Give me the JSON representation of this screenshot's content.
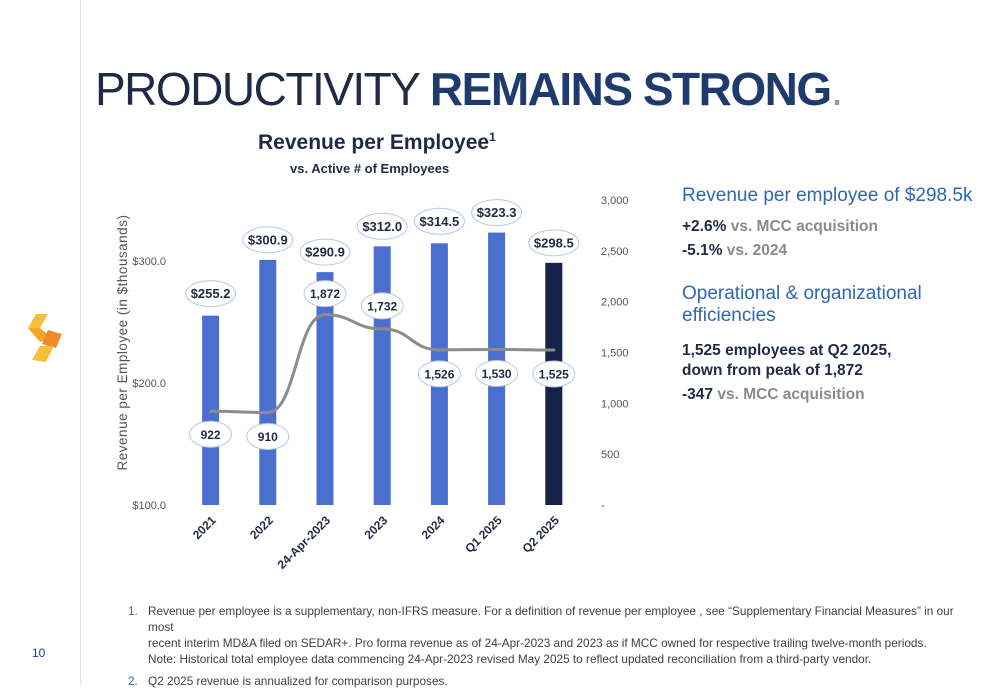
{
  "title": {
    "light": "PRODUCTIVITY ",
    "bold": "REMAINS STRONG",
    "dot": "."
  },
  "page_number": "10",
  "chart_data": {
    "type": "bar",
    "title": "Revenue per Employee",
    "title_sup": "1",
    "subtitle": "vs. Active # of Employees",
    "ylabel": "Revenue per Employee (in $thousands)",
    "categories": [
      "2021",
      "2022",
      "24-Apr-2023",
      "2023",
      "2024",
      "Q1 2025",
      "Q2 2025"
    ],
    "series": [
      {
        "values": [
          255.2,
          300.9,
          290.9,
          312.0,
          314.5,
          323.3,
          298.5
        ],
        "labels": [
          "$255.2",
          "$300.9",
          "$290.9",
          "$312.0",
          "$314.5",
          "$323.3",
          "$298.5"
        ],
        "axis": "left",
        "color": "#4a6fce",
        "highlight_color": "#14234a"
      },
      {
        "values": [
          922,
          910,
          1872,
          1732,
          1526,
          1530,
          1525
        ],
        "labels": [
          "922",
          "910",
          "1,872",
          "1,732",
          "1,526",
          "1,530",
          "1,525"
        ],
        "axis": "right",
        "type": "line",
        "color": "#8c8c8c"
      }
    ],
    "ylim": [
      100,
      350
    ],
    "yticks": [
      100,
      200,
      300
    ],
    "ytick_labels": [
      "$100.0",
      "$200.0",
      "$300.0"
    ],
    "y2lim": [
      0,
      3000
    ],
    "y2ticks": [
      0,
      500,
      1000,
      1500,
      2000,
      2500,
      3000
    ],
    "y2tick_labels": [
      "-",
      "500",
      "1,000",
      "1,500",
      "2,000",
      "2,500",
      "3,000"
    ],
    "grid": false,
    "legend": "none"
  },
  "stats": {
    "heading1": "Revenue per employee of $298.5k",
    "line1_num": "+2.6%",
    "line1_text": " vs. MCC acquisition",
    "line2_num": "-5.1%",
    "line2_text": " vs. 2024",
    "heading2": "Operational & organizational efficiencies",
    "line3a": "1,525 employees at Q2 2025,",
    "line3b": "down from peak of 1,872",
    "line4_num": "-347",
    "line4_text": " vs. MCC acquisition"
  },
  "footnotes": [
    {
      "num": "1.",
      "lines": [
        "Revenue per employee is a supplementary, non-IFRS measure. For a definition of revenue per employee , see “Supplementary Financial Measures” in our most",
        "recent interim MD&A filed on SEDAR+. Pro forma revenue as of 24-Apr-2023 and 2023 as if MCC owned for respective trailing twelve-month periods.",
        "Note: Historical total employee data commencing 24-Apr-2023 revised May 2025 to reflect updated reconciliation from a third-party vendor."
      ]
    },
    {
      "num": "2.",
      "lines": [
        "Q2 2025 revenue is annualized for comparison purposes."
      ]
    }
  ],
  "colors": {
    "brand_dark": "#1f2a44",
    "accent_blue": "#2f67b0",
    "logo_yellow": "#f6c13a",
    "logo_orange": "#f08a2c"
  }
}
